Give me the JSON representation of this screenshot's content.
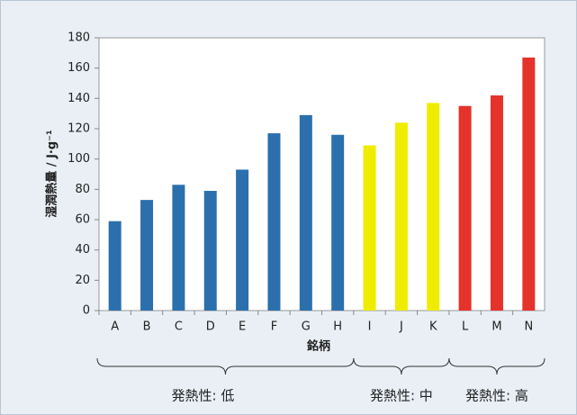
{
  "chart_data": {
    "type": "bar",
    "categories": [
      "A",
      "B",
      "C",
      "D",
      "E",
      "F",
      "G",
      "H",
      "I",
      "J",
      "K",
      "L",
      "M",
      "N"
    ],
    "series": [
      {
        "name": "発熱性: 低",
        "color": "#2b70ad",
        "values": [
          59,
          73,
          83,
          79,
          93,
          117,
          129,
          116,
          null,
          null,
          null,
          null,
          null,
          null
        ]
      },
      {
        "name": "発熱性: 中",
        "color": "#f0ec00",
        "values": [
          null,
          null,
          null,
          null,
          null,
          null,
          null,
          null,
          109,
          124,
          137,
          null,
          null,
          null
        ]
      },
      {
        "name": "発熱性: 高",
        "color": "#e5322b",
        "values": [
          null,
          null,
          null,
          null,
          null,
          null,
          null,
          null,
          null,
          null,
          null,
          135,
          142,
          167
        ]
      }
    ],
    "x_label": "銘柄",
    "y_label": "湿潤熱量 / J·g⁻¹",
    "ylim": [
      0,
      180
    ],
    "yticks": [
      0,
      20,
      40,
      60,
      80,
      100,
      120,
      140,
      160,
      180
    ],
    "grid": false
  }
}
